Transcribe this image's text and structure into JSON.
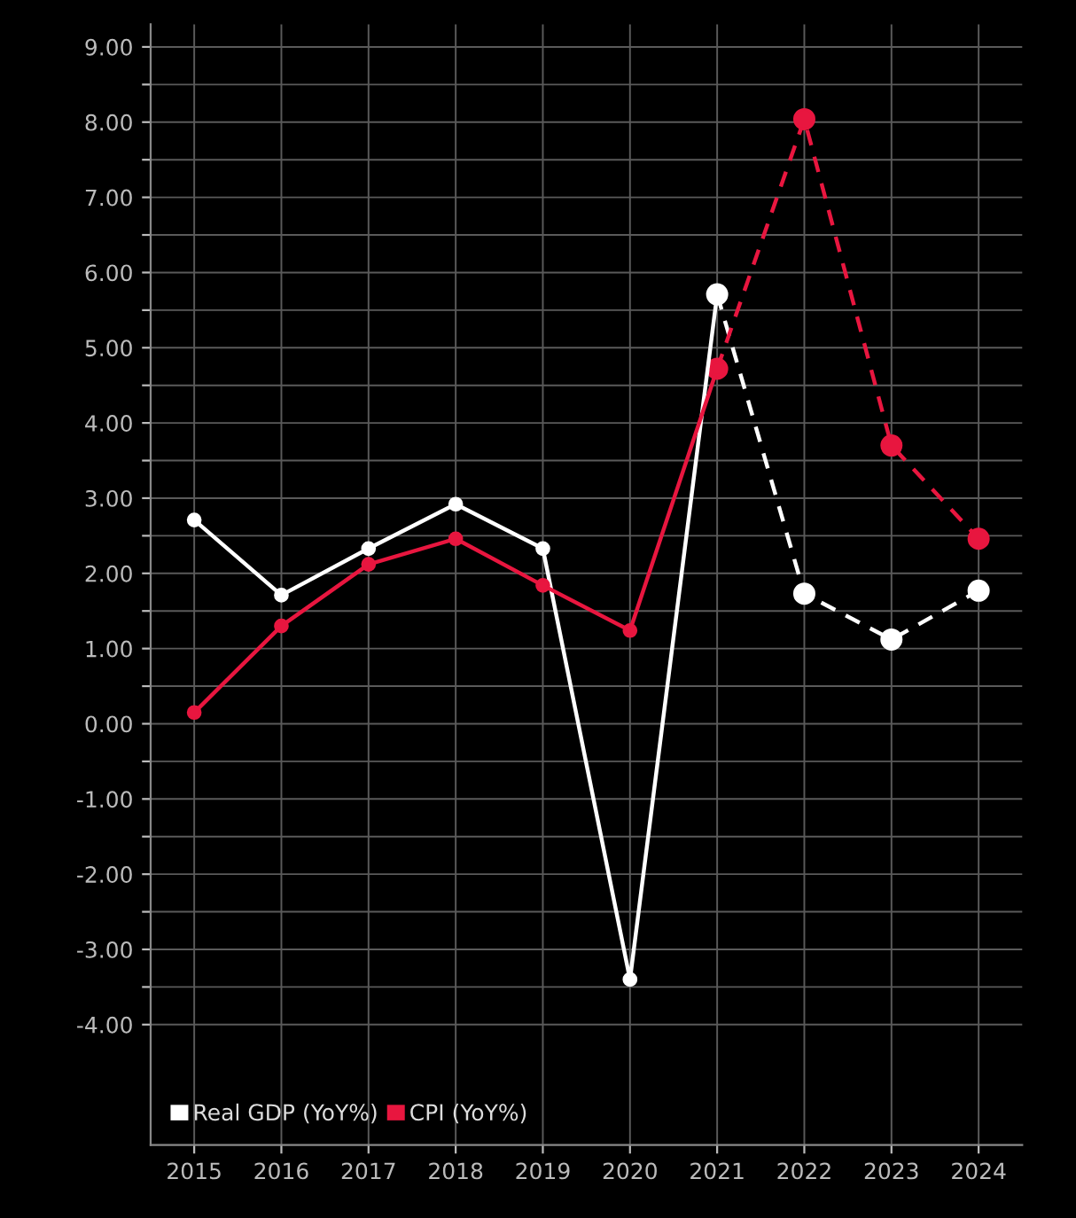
{
  "chart_data": {
    "type": "line",
    "categories": [
      "2015",
      "2016",
      "2017",
      "2018",
      "2019",
      "2020",
      "2021",
      "2022",
      "2023",
      "2024"
    ],
    "series": [
      {
        "name": "Real GDP (YoY%)",
        "color": "#ffffff",
        "line_style": "solid",
        "values": [
          2.71,
          1.71,
          2.33,
          2.92,
          2.33,
          -3.4,
          5.71,
          null,
          null,
          null
        ]
      },
      {
        "name": "CPI (YoY%)",
        "color": "#e8163f",
        "line_style": "solid",
        "values": [
          0.15,
          1.3,
          2.12,
          2.46,
          1.84,
          1.24,
          4.72,
          null,
          null,
          null
        ]
      },
      {
        "color": "#ffffff",
        "line_style": "dashed",
        "values": [
          null,
          null,
          null,
          null,
          null,
          null,
          5.71,
          1.73,
          1.12,
          1.77
        ]
      },
      {
        "color": "#e8163f",
        "line_style": "dashed",
        "values": [
          null,
          null,
          null,
          null,
          null,
          null,
          4.72,
          8.04,
          3.7,
          2.46
        ]
      }
    ],
    "ylim": [
      -5.6,
      9.3
    ],
    "yticks": [
      {
        "value": -4,
        "label": "-4.00"
      },
      {
        "value": -3.5,
        "label": null
      },
      {
        "value": -3,
        "label": "-3.00"
      },
      {
        "value": -2.5,
        "label": null
      },
      {
        "value": -2,
        "label": "-2.00"
      },
      {
        "value": -1.5,
        "label": null
      },
      {
        "value": -1,
        "label": "-1.00"
      },
      {
        "value": -0.5,
        "label": null
      },
      {
        "value": 0,
        "label": "0.00"
      },
      {
        "value": 0.5,
        "label": null
      },
      {
        "value": 1,
        "label": "1.00"
      },
      {
        "value": 1.5,
        "label": null
      },
      {
        "value": 2,
        "label": "2.00"
      },
      {
        "value": 2.5,
        "label": null
      },
      {
        "value": 3,
        "label": "3.00"
      },
      {
        "value": 3.5,
        "label": null
      },
      {
        "value": 4,
        "label": "4.00"
      },
      {
        "value": 4.5,
        "label": null
      },
      {
        "value": 5,
        "label": "5.00"
      },
      {
        "value": 5.5,
        "label": null
      },
      {
        "value": 6,
        "label": "6.00"
      },
      {
        "value": 6.5,
        "label": null
      },
      {
        "value": 7,
        "label": "7.00"
      },
      {
        "value": 7.5,
        "label": null
      },
      {
        "value": 8,
        "label": "8.00"
      },
      {
        "value": 8.5,
        "label": null
      },
      {
        "value": 9,
        "label": "9.00"
      }
    ],
    "grid": true,
    "legend": "bottom left",
    "marker": "circle"
  }
}
